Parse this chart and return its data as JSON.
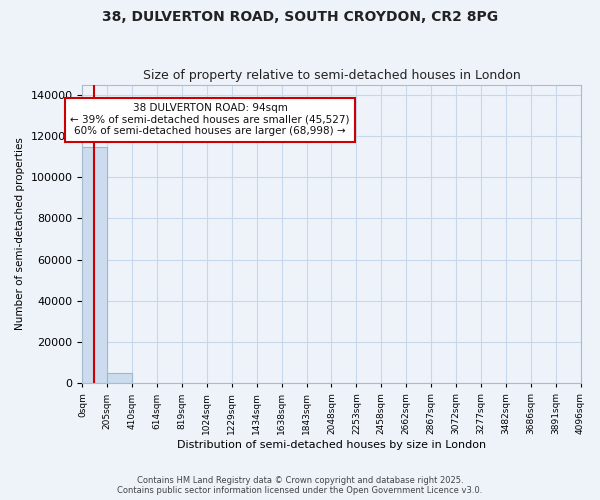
{
  "title_line1": "38, DULVERTON ROAD, SOUTH CROYDON, CR2 8PG",
  "title_line2": "Size of property relative to semi-detached houses in London",
  "xlabel": "Distribution of semi-detached houses by size in London",
  "ylabel": "Number of semi-detached properties",
  "property_size": 94,
  "property_label": "38 DULVERTON ROAD: 94sqm",
  "pct_smaller": 39,
  "count_smaller": 45527,
  "pct_larger": 60,
  "count_larger": 68998,
  "bar_edges": [
    0,
    205,
    410,
    614,
    819,
    1024,
    1229,
    1434,
    1638,
    1843,
    2048,
    2253,
    2458,
    2662,
    2867,
    3072,
    3277,
    3482,
    3686,
    3891,
    4096
  ],
  "bar_heights": [
    114525,
    5200,
    0,
    0,
    0,
    0,
    0,
    0,
    0,
    0,
    0,
    0,
    0,
    0,
    0,
    0,
    0,
    0,
    0,
    0
  ],
  "bar_color": "#ccdcee",
  "bar_edge_color": "#9ab8d4",
  "red_line_color": "#cc0000",
  "grid_color": "#c8d8ec",
  "background_color": "#eef3fa",
  "annotation_box_color": "#ffffff",
  "annotation_border_color": "#cc0000",
  "ylim": [
    0,
    145000
  ],
  "yticks": [
    0,
    20000,
    40000,
    60000,
    80000,
    100000,
    120000,
    140000
  ],
  "footer_line1": "Contains HM Land Registry data © Crown copyright and database right 2025.",
  "footer_line2": "Contains public sector information licensed under the Open Government Licence v3.0."
}
